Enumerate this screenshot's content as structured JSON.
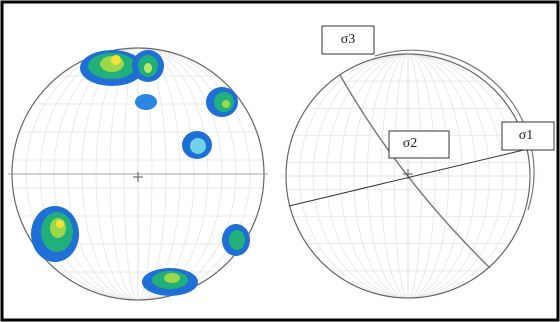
{
  "labels": [
    "σ3",
    "σ2",
    "σ1"
  ]
}
